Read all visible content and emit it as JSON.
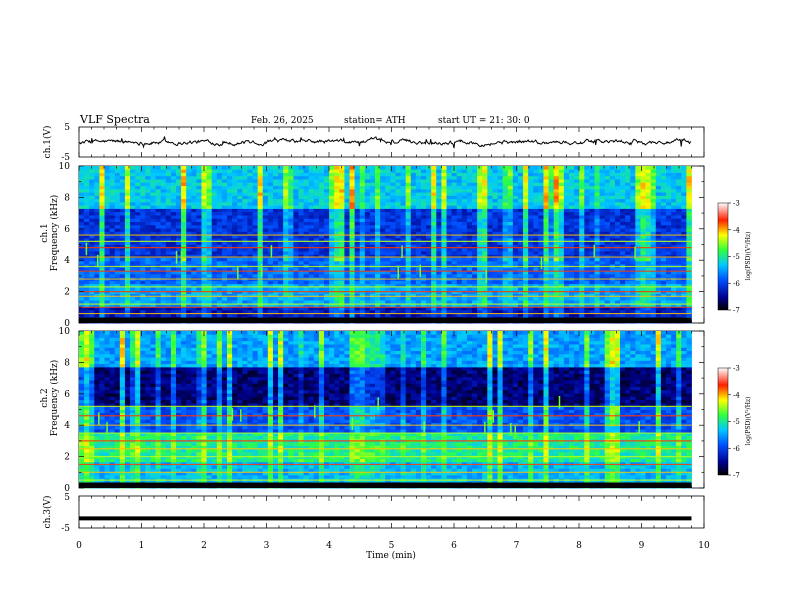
{
  "header": {
    "title": "VLF  Spectra",
    "date": "Feb. 26, 2025",
    "station": "station= ATH",
    "start_ut": "start  UT  =    21: 30: 0"
  },
  "chart_data": [
    {
      "id": "ch1-timeseries",
      "type": "line",
      "ylabel": "ch.1(V)",
      "ylim": [
        -5,
        5
      ],
      "yticks": [
        "5",
        "-5"
      ],
      "xlim": [
        0,
        10
      ],
      "series_color": "#000000",
      "note_values": "near-zero fluctuating waveform, approx. -1 to 1 V, ending at 9.8 min"
    },
    {
      "id": "ch1-spectrogram",
      "type": "heatmap",
      "ylabel": "ch.1\nFrequency  (kHz)",
      "ylabel_lines": [
        "ch.1",
        "Frequency  (kHz)"
      ],
      "ylim": [
        0,
        10
      ],
      "yticks": [
        "0",
        "2",
        "4",
        "6",
        "8",
        "10"
      ],
      "xlim": [
        0,
        10
      ],
      "data_end_min": 9.8,
      "colorbar": {
        "label": "log(PSD)(V²/Hz)",
        "range": [
          -7,
          -3
        ],
        "ticks": [
          "-3",
          "-4",
          "-5",
          "-6",
          "-7"
        ]
      },
      "lines_khz": [
        0.3,
        0.6,
        1.0,
        1.2,
        1.7,
        2.0,
        2.3,
        2.8,
        3.3,
        3.6,
        4.2,
        4.8,
        5.2,
        5.6
      ],
      "noise_bands": [
        {
          "from": 0,
          "to": 1.1,
          "level": -6.3
        },
        {
          "from": 1.1,
          "to": 2.4,
          "level": -5.5
        },
        {
          "from": 2.4,
          "to": 4.2,
          "level": -5.8
        },
        {
          "from": 4.2,
          "to": 7.2,
          "level": -6.1
        },
        {
          "from": 7.2,
          "to": 10.0,
          "level": -5.3
        }
      ]
    },
    {
      "id": "ch2-spectrogram",
      "type": "heatmap",
      "ylabel": "ch.2\nFrequency  (kHz)",
      "ylabel_lines": [
        "ch.2",
        "Frequency  (kHz)"
      ],
      "ylim": [
        0,
        10
      ],
      "yticks": [
        "0",
        "2",
        "4",
        "6",
        "8",
        "10"
      ],
      "xlim": [
        0,
        10
      ],
      "data_end_min": 9.8,
      "colorbar": {
        "label": "log(PSD)(V²/Hz)",
        "range": [
          -7,
          -3
        ],
        "ticks": [
          "-3",
          "-4",
          "-5",
          "-6",
          "-7"
        ]
      },
      "lines_khz": [
        0.5,
        1.0,
        1.5,
        2.0,
        2.5,
        3.0,
        3.5,
        4.0,
        4.6,
        5.2
      ],
      "noise_bands": [
        {
          "from": 0,
          "to": 1.6,
          "level": -5.4
        },
        {
          "from": 1.6,
          "to": 3.6,
          "level": -5.0
        },
        {
          "from": 3.6,
          "to": 5.2,
          "level": -5.9
        },
        {
          "from": 5.2,
          "to": 7.8,
          "level": -6.6
        },
        {
          "from": 7.8,
          "to": 10.0,
          "level": -5.5
        }
      ]
    },
    {
      "id": "ch3-timeseries",
      "type": "line",
      "ylabel": "ch.3(V)",
      "ylim": [
        -5,
        5
      ],
      "yticks": [
        "5",
        "-5"
      ],
      "xlim": [
        0,
        10
      ],
      "constant_value": -2,
      "data_end_min": 9.8,
      "series_color": "#000000"
    }
  ],
  "x_axis": {
    "label": "Time  (min)",
    "range": [
      0,
      10
    ],
    "ticks": [
      "0",
      "1",
      "2",
      "3",
      "4",
      "5",
      "6",
      "7",
      "8",
      "9",
      "10"
    ]
  }
}
